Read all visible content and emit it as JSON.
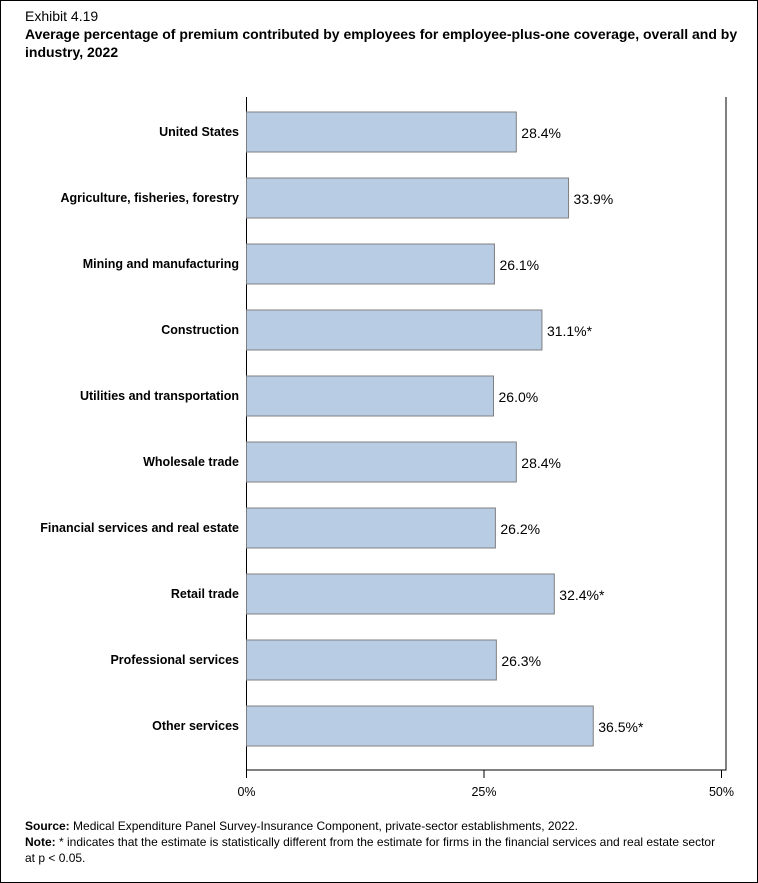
{
  "exhibit": "Exhibit 4.19",
  "chart_data": {
    "type": "bar",
    "orientation": "horizontal",
    "title": "Average percentage of premium contributed by employees for employee-plus-one coverage, overall and by industry, 2022",
    "categories": [
      "United States",
      "Agriculture, fisheries, forestry",
      "Mining and manufacturing",
      "Construction",
      "Utilities and transportation",
      "Wholesale trade",
      "Financial services and real estate",
      "Retail trade",
      "Professional services",
      "Other services"
    ],
    "values": [
      28.4,
      33.9,
      26.1,
      31.1,
      26.0,
      28.4,
      26.2,
      32.4,
      26.3,
      36.5
    ],
    "data_labels": [
      "28.4%",
      "33.9%",
      "26.1%",
      "31.1%*",
      "26.0%",
      "28.4%",
      "26.2%",
      "32.4%*",
      "26.3%",
      "36.5%*"
    ],
    "xlim": [
      0,
      50
    ],
    "xticks": [
      "0%",
      "25%",
      "50%"
    ],
    "xtick_values": [
      0,
      25,
      50
    ],
    "xlabel": "",
    "ylabel": "",
    "grid": false,
    "bar_color": "#b8cce4",
    "bar_border": "#7f7f7f"
  },
  "footer": {
    "source_label": "Source:",
    "source_text": " Medical Expenditure Panel Survey-Insurance Component, private-sector establishments, 2022.",
    "note_label": "Note:",
    "note_text": "  * indicates that the estimate is statistically different from the estimate for firms in the financial services and real estate sector at p < 0.05."
  }
}
